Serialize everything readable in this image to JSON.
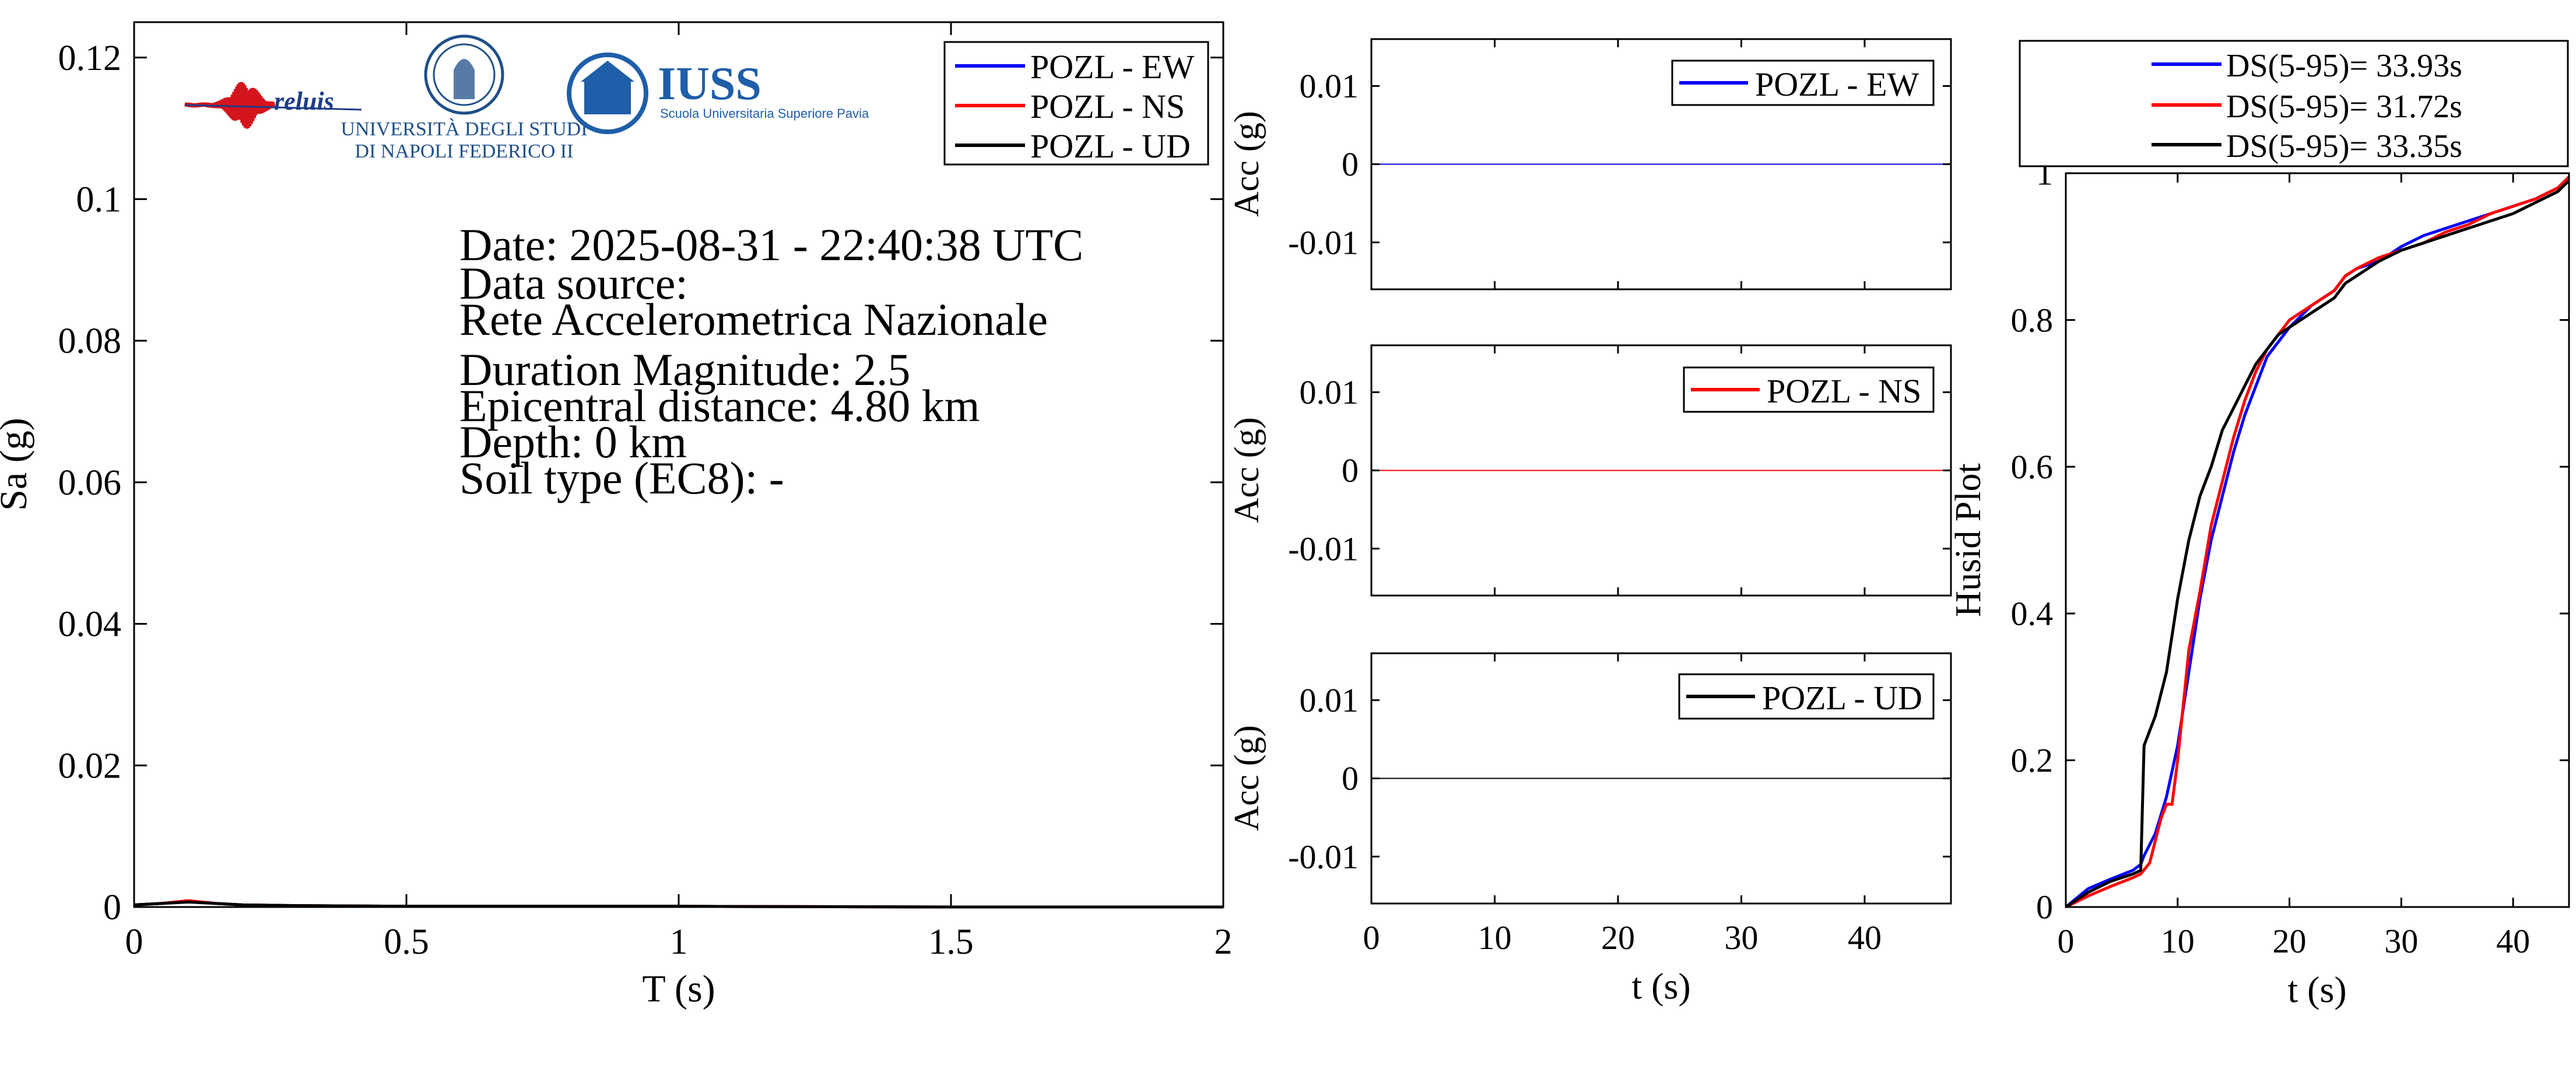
{
  "logos": {
    "reluis": "reluis",
    "unina_line1": "UNIVERSITÀ DEGLI STUDI",
    "unina_line2": "DI NAPOLI FEDERICO II",
    "iuss_name": "IUSS",
    "iuss_subtitle": "Scuola Universitaria Superiore Pavia"
  },
  "info": {
    "date": "Date: 2025-08-31 - 22:40:38 UTC",
    "source_label": "Data source:",
    "source": "Rete Accelerometrica Nazionale",
    "magnitude": "Duration Magnitude: 2.5",
    "distance": "Epicentral distance: 4.80 km",
    "depth": "Depth: 0 km",
    "soil": "Soil type (EC8): -"
  },
  "colors": {
    "ew": "#0000ff",
    "ns": "#ff0000",
    "ud": "#000000"
  },
  "chart_data": [
    {
      "id": "spectrum",
      "type": "line",
      "xlabel": "T (s)",
      "ylabel": "Sa (g)",
      "xlim": [
        0,
        2
      ],
      "ylim": [
        0,
        0.125
      ],
      "xticks": [
        0,
        0.5,
        1,
        1.5,
        2
      ],
      "xticklabels": [
        "0",
        "0.5",
        "1",
        "1.5",
        "2"
      ],
      "yticks": [
        0,
        0.02,
        0.04,
        0.06,
        0.08,
        0.1,
        0.12
      ],
      "yticklabels": [
        "0",
        "0.02",
        "0.04",
        "0.06",
        "0.08",
        "0.1",
        "0.12"
      ],
      "legend_position": "top-right",
      "series": [
        {
          "name": "POZL - EW",
          "color": "#0000ff",
          "x": [
            0,
            0.05,
            0.1,
            0.15,
            0.2,
            0.3,
            0.5,
            1,
            1.5,
            2
          ],
          "y": [
            0.0003,
            0.0005,
            0.0008,
            0.0005,
            0.0003,
            0.0002,
            0.0001,
            0.0001,
            0.0,
            0.0
          ]
        },
        {
          "name": "POZL - NS",
          "color": "#ff0000",
          "x": [
            0,
            0.05,
            0.1,
            0.15,
            0.2,
            0.3,
            0.5,
            1,
            1.5,
            2
          ],
          "y": [
            0.0003,
            0.0005,
            0.0009,
            0.0005,
            0.0003,
            0.0002,
            0.0001,
            0.0001,
            0.0,
            0.0
          ]
        },
        {
          "name": "POZL - UD",
          "color": "#000000",
          "x": [
            0,
            0.05,
            0.1,
            0.15,
            0.2,
            0.3,
            0.5,
            1,
            1.5,
            2
          ],
          "y": [
            0.0003,
            0.0005,
            0.0007,
            0.0005,
            0.0003,
            0.0002,
            0.0001,
            0.0001,
            0.0,
            0.0
          ]
        }
      ]
    },
    {
      "id": "acc_ew",
      "type": "line",
      "ylabel": "Acc (g)",
      "xlim": [
        0,
        47
      ],
      "ylim": [
        -0.016,
        0.016
      ],
      "yticks": [
        0.01,
        0,
        -0.01
      ],
      "yticklabels": [
        "0.01",
        "0",
        "-0.01"
      ],
      "legend_position": "top-right",
      "series": [
        {
          "name": "POZL - EW",
          "color": "#0000ff",
          "x": [
            0,
            47
          ],
          "y": [
            0,
            0
          ]
        }
      ]
    },
    {
      "id": "acc_ns",
      "type": "line",
      "ylabel": "Acc (g)",
      "xlim": [
        0,
        47
      ],
      "ylim": [
        -0.016,
        0.016
      ],
      "yticks": [
        0.01,
        0,
        -0.01
      ],
      "yticklabels": [
        "0.01",
        "0",
        "-0.01"
      ],
      "legend_position": "top-right",
      "series": [
        {
          "name": "POZL - NS",
          "color": "#ff0000",
          "x": [
            0,
            47
          ],
          "y": [
            0,
            0
          ]
        }
      ]
    },
    {
      "id": "acc_ud",
      "type": "line",
      "xlabel": "t (s)",
      "ylabel": "Acc (g)",
      "xlim": [
        0,
        47
      ],
      "ylim": [
        -0.016,
        0.016
      ],
      "xticks": [
        0,
        10,
        20,
        30,
        40
      ],
      "xticklabels": [
        "0",
        "10",
        "20",
        "30",
        "40"
      ],
      "yticks": [
        0.01,
        0,
        -0.01
      ],
      "yticklabels": [
        "0.01",
        "0",
        "-0.01"
      ],
      "legend_position": "top-right",
      "series": [
        {
          "name": "POZL - UD",
          "color": "#000000",
          "x": [
            0,
            47
          ],
          "y": [
            0,
            0
          ]
        }
      ]
    },
    {
      "id": "husid",
      "type": "line",
      "xlabel": "t (s)",
      "ylabel": "Husid Plot",
      "xlim": [
        0,
        45
      ],
      "ylim": [
        0,
        1
      ],
      "xticks": [
        0,
        10,
        20,
        30,
        40
      ],
      "xticklabels": [
        "0",
        "10",
        "20",
        "30",
        "40"
      ],
      "yticks": [
        0,
        0.2,
        0.4,
        0.6,
        0.8,
        1
      ],
      "yticklabels": [
        "0",
        "0.2",
        "0.4",
        "0.6",
        "0.8",
        "1"
      ],
      "legend_position": "top (outside)",
      "series": [
        {
          "name": "DS(5-95)= 33.93s",
          "color": "#0000ff",
          "x": [
            0,
            2,
            4,
            6,
            6.7,
            7,
            8,
            9,
            10,
            11,
            12,
            13,
            14,
            15,
            16,
            17,
            18,
            19,
            20,
            22,
            24,
            25,
            26,
            28,
            30,
            32,
            34,
            36,
            38,
            40,
            42,
            44,
            45
          ],
          "y": [
            0,
            0.025,
            0.038,
            0.05,
            0.058,
            0.07,
            0.1,
            0.15,
            0.22,
            0.32,
            0.42,
            0.5,
            0.56,
            0.62,
            0.67,
            0.71,
            0.75,
            0.77,
            0.79,
            0.82,
            0.84,
            0.86,
            0.87,
            0.88,
            0.9,
            0.915,
            0.925,
            0.935,
            0.945,
            0.955,
            0.965,
            0.98,
            0.995
          ]
        },
        {
          "name": "DS(5-95)= 31.72s",
          "color": "#ff0000",
          "x": [
            0,
            2,
            4,
            6,
            6.7,
            7.5,
            8.5,
            9,
            9.5,
            10,
            11,
            12,
            13,
            14,
            15,
            16,
            17,
            18,
            19,
            20,
            22,
            24,
            25,
            26,
            28,
            30,
            32,
            34,
            36,
            38,
            40,
            42,
            44,
            45
          ],
          "y": [
            0,
            0.015,
            0.028,
            0.04,
            0.045,
            0.06,
            0.12,
            0.14,
            0.14,
            0.2,
            0.35,
            0.43,
            0.52,
            0.58,
            0.64,
            0.69,
            0.73,
            0.76,
            0.78,
            0.8,
            0.82,
            0.84,
            0.86,
            0.87,
            0.885,
            0.895,
            0.905,
            0.92,
            0.93,
            0.945,
            0.955,
            0.965,
            0.98,
            0.995
          ]
        },
        {
          "name": "DS(5-95)= 33.35s",
          "color": "#000000",
          "x": [
            0,
            2,
            4,
            6,
            6.7,
            7,
            8,
            9,
            10,
            11,
            12,
            13,
            14,
            15,
            16,
            17,
            18,
            19,
            20,
            22,
            24,
            25,
            26,
            28,
            30,
            32,
            34,
            36,
            38,
            40,
            42,
            44,
            45
          ],
          "y": [
            0,
            0.02,
            0.035,
            0.045,
            0.05,
            0.22,
            0.26,
            0.32,
            0.42,
            0.5,
            0.56,
            0.6,
            0.65,
            0.68,
            0.71,
            0.74,
            0.76,
            0.78,
            0.79,
            0.81,
            0.83,
            0.85,
            0.86,
            0.88,
            0.895,
            0.905,
            0.915,
            0.925,
            0.935,
            0.945,
            0.96,
            0.975,
            0.99
          ]
        }
      ]
    }
  ]
}
